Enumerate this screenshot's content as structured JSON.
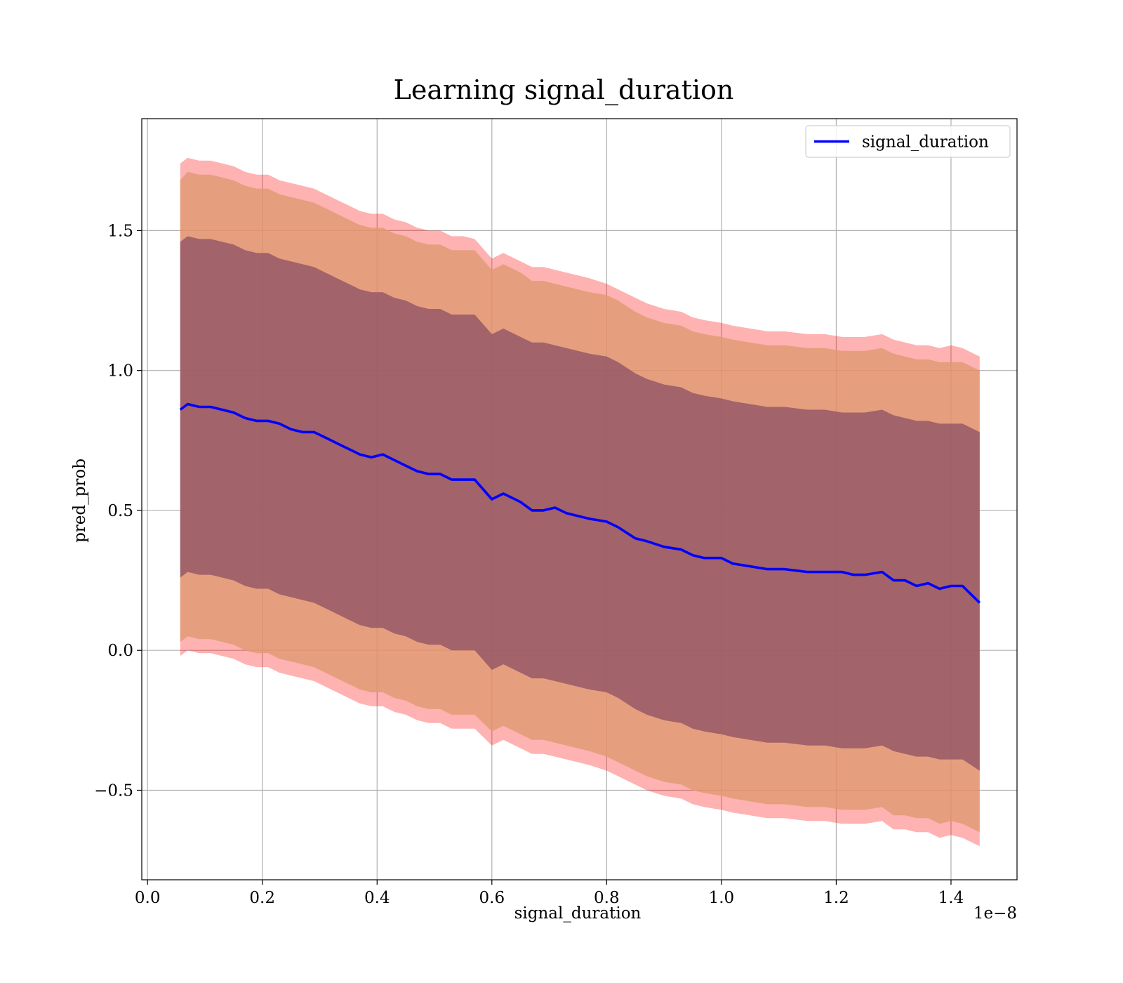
{
  "chart_data": {
    "type": "area",
    "title": "Learning signal_duration",
    "xlabel": "signal_duration",
    "ylabel": "pred_prob",
    "x_offset_label": "1e−8",
    "xlim": [
      -0.01,
      1.515
    ],
    "ylim": [
      -0.82,
      1.9
    ],
    "x_ticks": [
      0.0,
      0.2,
      0.4,
      0.6,
      0.8,
      1.0,
      1.2,
      1.4
    ],
    "x_tick_labels": [
      "0.0",
      "0.2",
      "0.4",
      "0.6",
      "0.8",
      "1.0",
      "1.2",
      "1.4"
    ],
    "y_ticks": [
      -0.5,
      0.0,
      0.5,
      1.0,
      1.5
    ],
    "y_tick_labels": [
      "−0.5",
      "0.0",
      "0.5",
      "1.0",
      "1.5"
    ],
    "grid": true,
    "legend": {
      "position": "top-right",
      "entries": [
        "signal_duration"
      ]
    },
    "colors": {
      "line": "#0000ff",
      "band_outer": "#ff0000",
      "band_middle": "#e09a70",
      "band_inner": "#8b4f66"
    },
    "series": [
      {
        "name": "signal_duration",
        "x": [
          0.057,
          0.07,
          0.09,
          0.11,
          0.13,
          0.15,
          0.17,
          0.19,
          0.21,
          0.23,
          0.25,
          0.27,
          0.29,
          0.31,
          0.33,
          0.35,
          0.37,
          0.39,
          0.41,
          0.43,
          0.45,
          0.47,
          0.49,
          0.51,
          0.53,
          0.55,
          0.57,
          0.6,
          0.62,
          0.65,
          0.67,
          0.69,
          0.71,
          0.73,
          0.75,
          0.77,
          0.8,
          0.82,
          0.85,
          0.87,
          0.9,
          0.93,
          0.95,
          0.97,
          1.0,
          1.02,
          1.05,
          1.08,
          1.11,
          1.15,
          1.18,
          1.21,
          1.23,
          1.25,
          1.28,
          1.3,
          1.32,
          1.34,
          1.36,
          1.38,
          1.4,
          1.42,
          1.45
        ],
        "y": [
          0.86,
          0.88,
          0.87,
          0.87,
          0.86,
          0.85,
          0.83,
          0.82,
          0.82,
          0.81,
          0.79,
          0.78,
          0.78,
          0.76,
          0.74,
          0.72,
          0.7,
          0.69,
          0.7,
          0.68,
          0.66,
          0.64,
          0.63,
          0.63,
          0.61,
          0.61,
          0.61,
          0.54,
          0.56,
          0.53,
          0.5,
          0.5,
          0.51,
          0.49,
          0.48,
          0.47,
          0.46,
          0.44,
          0.4,
          0.39,
          0.37,
          0.36,
          0.34,
          0.33,
          0.33,
          0.31,
          0.3,
          0.29,
          0.29,
          0.28,
          0.28,
          0.28,
          0.27,
          0.27,
          0.28,
          0.25,
          0.25,
          0.23,
          0.24,
          0.22,
          0.23,
          0.23,
          0.17
        ]
      }
    ],
    "bands": [
      {
        "level": "outer",
        "upper": [
          1.74,
          1.76,
          1.75,
          1.75,
          1.74,
          1.73,
          1.71,
          1.7,
          1.7,
          1.68,
          1.67,
          1.66,
          1.65,
          1.63,
          1.61,
          1.59,
          1.57,
          1.56,
          1.56,
          1.54,
          1.53,
          1.51,
          1.5,
          1.5,
          1.48,
          1.48,
          1.47,
          1.4,
          1.42,
          1.39,
          1.37,
          1.37,
          1.36,
          1.35,
          1.34,
          1.33,
          1.31,
          1.29,
          1.26,
          1.24,
          1.22,
          1.21,
          1.19,
          1.18,
          1.17,
          1.16,
          1.15,
          1.14,
          1.14,
          1.13,
          1.13,
          1.12,
          1.12,
          1.12,
          1.13,
          1.11,
          1.1,
          1.09,
          1.09,
          1.08,
          1.09,
          1.08,
          1.05
        ],
        "lower": [
          -0.02,
          0.0,
          -0.01,
          -0.01,
          -0.02,
          -0.03,
          -0.05,
          -0.06,
          -0.06,
          -0.08,
          -0.09,
          -0.1,
          -0.11,
          -0.13,
          -0.15,
          -0.17,
          -0.19,
          -0.2,
          -0.2,
          -0.22,
          -0.23,
          -0.25,
          -0.26,
          -0.26,
          -0.28,
          -0.28,
          -0.28,
          -0.34,
          -0.32,
          -0.35,
          -0.37,
          -0.37,
          -0.38,
          -0.39,
          -0.4,
          -0.41,
          -0.43,
          -0.45,
          -0.48,
          -0.5,
          -0.52,
          -0.53,
          -0.55,
          -0.56,
          -0.57,
          -0.58,
          -0.59,
          -0.6,
          -0.6,
          -0.61,
          -0.61,
          -0.62,
          -0.62,
          -0.62,
          -0.61,
          -0.64,
          -0.64,
          -0.65,
          -0.65,
          -0.67,
          -0.66,
          -0.67,
          -0.7
        ]
      },
      {
        "level": "middle",
        "upper": [
          1.68,
          1.71,
          1.7,
          1.7,
          1.69,
          1.68,
          1.66,
          1.65,
          1.65,
          1.63,
          1.62,
          1.61,
          1.6,
          1.58,
          1.56,
          1.54,
          1.52,
          1.51,
          1.51,
          1.49,
          1.48,
          1.46,
          1.45,
          1.45,
          1.43,
          1.43,
          1.43,
          1.36,
          1.38,
          1.35,
          1.32,
          1.32,
          1.31,
          1.3,
          1.29,
          1.28,
          1.27,
          1.25,
          1.21,
          1.19,
          1.17,
          1.16,
          1.14,
          1.13,
          1.12,
          1.11,
          1.1,
          1.09,
          1.09,
          1.08,
          1.08,
          1.07,
          1.07,
          1.07,
          1.08,
          1.06,
          1.05,
          1.04,
          1.04,
          1.03,
          1.03,
          1.03,
          1.0
        ],
        "lower": [
          0.03,
          0.05,
          0.04,
          0.04,
          0.03,
          0.02,
          0.0,
          -0.01,
          -0.01,
          -0.03,
          -0.04,
          -0.05,
          -0.06,
          -0.08,
          -0.1,
          -0.12,
          -0.14,
          -0.15,
          -0.15,
          -0.17,
          -0.18,
          -0.2,
          -0.21,
          -0.21,
          -0.23,
          -0.23,
          -0.23,
          -0.29,
          -0.27,
          -0.3,
          -0.32,
          -0.32,
          -0.33,
          -0.34,
          -0.35,
          -0.36,
          -0.38,
          -0.4,
          -0.43,
          -0.45,
          -0.47,
          -0.48,
          -0.5,
          -0.51,
          -0.52,
          -0.53,
          -0.54,
          -0.55,
          -0.55,
          -0.56,
          -0.56,
          -0.57,
          -0.57,
          -0.57,
          -0.56,
          -0.59,
          -0.59,
          -0.6,
          -0.6,
          -0.62,
          -0.61,
          -0.62,
          -0.65
        ]
      },
      {
        "level": "inner",
        "upper": [
          1.46,
          1.48,
          1.47,
          1.47,
          1.46,
          1.45,
          1.43,
          1.42,
          1.42,
          1.4,
          1.39,
          1.38,
          1.37,
          1.35,
          1.33,
          1.31,
          1.29,
          1.28,
          1.28,
          1.26,
          1.25,
          1.23,
          1.22,
          1.22,
          1.2,
          1.2,
          1.2,
          1.13,
          1.15,
          1.12,
          1.1,
          1.1,
          1.09,
          1.08,
          1.07,
          1.06,
          1.05,
          1.03,
          0.99,
          0.97,
          0.95,
          0.94,
          0.92,
          0.91,
          0.9,
          0.89,
          0.88,
          0.87,
          0.87,
          0.86,
          0.86,
          0.85,
          0.85,
          0.85,
          0.86,
          0.84,
          0.83,
          0.82,
          0.82,
          0.81,
          0.81,
          0.81,
          0.78
        ],
        "lower": [
          0.26,
          0.28,
          0.27,
          0.27,
          0.26,
          0.25,
          0.23,
          0.22,
          0.22,
          0.2,
          0.19,
          0.18,
          0.17,
          0.15,
          0.13,
          0.11,
          0.09,
          0.08,
          0.08,
          0.06,
          0.05,
          0.03,
          0.02,
          0.02,
          0.0,
          0.0,
          0.0,
          -0.07,
          -0.05,
          -0.08,
          -0.1,
          -0.1,
          -0.11,
          -0.12,
          -0.13,
          -0.14,
          -0.15,
          -0.17,
          -0.21,
          -0.23,
          -0.25,
          -0.26,
          -0.28,
          -0.29,
          -0.3,
          -0.31,
          -0.32,
          -0.33,
          -0.33,
          -0.34,
          -0.34,
          -0.35,
          -0.35,
          -0.35,
          -0.34,
          -0.36,
          -0.37,
          -0.38,
          -0.38,
          -0.39,
          -0.39,
          -0.39,
          -0.43
        ]
      }
    ]
  }
}
